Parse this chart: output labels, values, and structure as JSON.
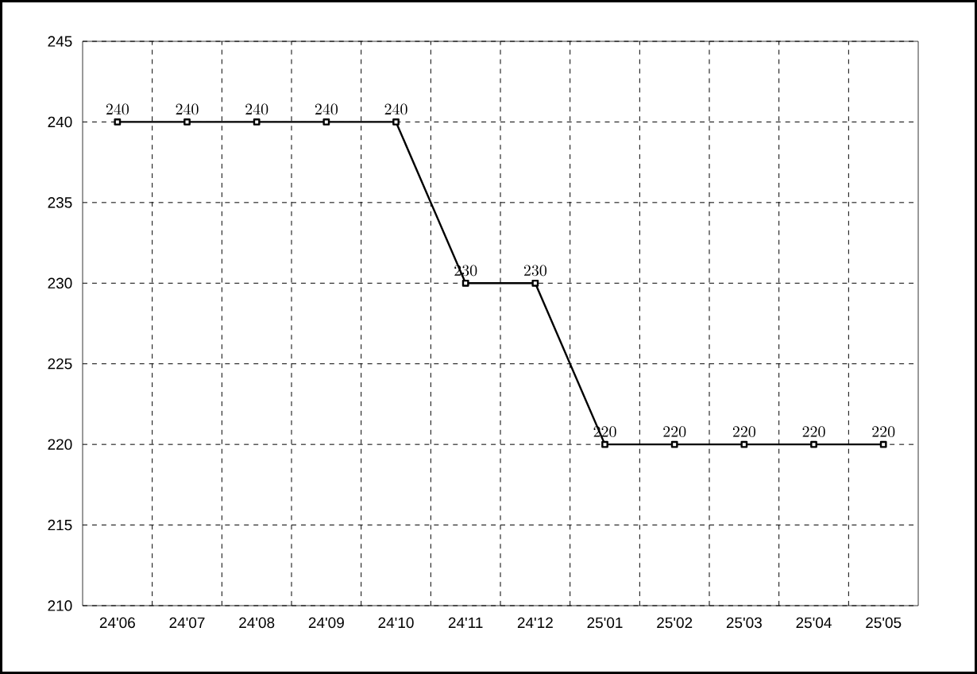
{
  "chart_data": {
    "type": "line",
    "categories": [
      "24'06",
      "24'07",
      "24'08",
      "24'09",
      "24'10",
      "24'11",
      "24'12",
      "25'01",
      "25'02",
      "25'03",
      "25'04",
      "25'05"
    ],
    "series": [
      {
        "color": "#000000",
        "values": [
          240,
          240,
          240,
          240,
          240,
          230,
          230,
          220,
          220,
          220,
          220,
          220
        ]
      }
    ],
    "ylim": [
      210,
      245
    ],
    "yticks": [
      210,
      215,
      220,
      225,
      230,
      235,
      240,
      245
    ],
    "grid": true,
    "marker": "square",
    "line_style": "solid",
    "data_labels": true
  }
}
